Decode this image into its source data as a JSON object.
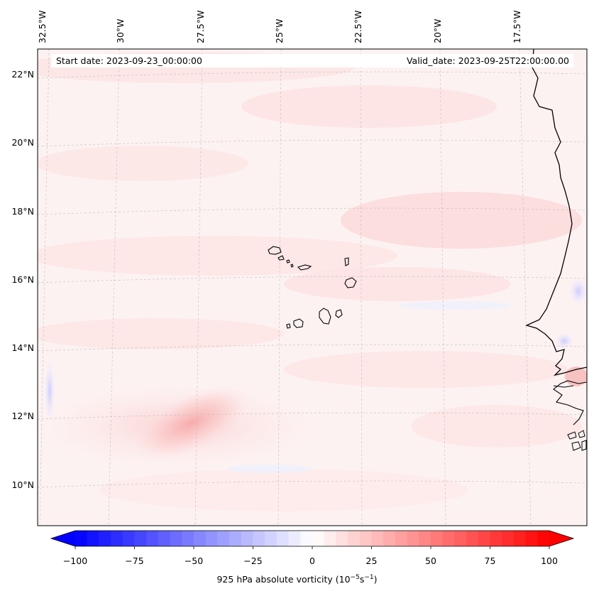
{
  "map": {
    "start_date": "Start date: 2023-09-23_00:00:00",
    "valid_date": "Valid_date: 2023-09-25T22:00:00.00",
    "lon_labels": [
      "32.5°W",
      "30°W",
      "27.5°W",
      "25°W",
      "22.5°W",
      "20°W",
      "17.5°W"
    ],
    "lat_labels": [
      "22°N",
      "20°N",
      "18°N",
      "16°N",
      "14°N",
      "12°N",
      "10°N"
    ],
    "coastline_color": "#000000",
    "gridline_color": "#bdbdbd",
    "features": [
      "Cape Verde islands",
      "West African coast (Senegal, Gambia, Guinea-Bissau)"
    ]
  },
  "colorbar": {
    "tick_labels": [
      "−100",
      "−75",
      "−50",
      "−25",
      "0",
      "25",
      "50",
      "75",
      "100"
    ],
    "title": "925 hPa absolute vorticity (10",
    "title_exp1": "−5",
    "title_mid": "s",
    "title_exp2": "−1",
    "title_end": ")",
    "cmap": "bwr",
    "min_color": "#0000ff",
    "mid_color": "#ffffff",
    "max_color": "#ff0000",
    "range": [
      -100,
      100
    ],
    "extend": "both"
  }
}
